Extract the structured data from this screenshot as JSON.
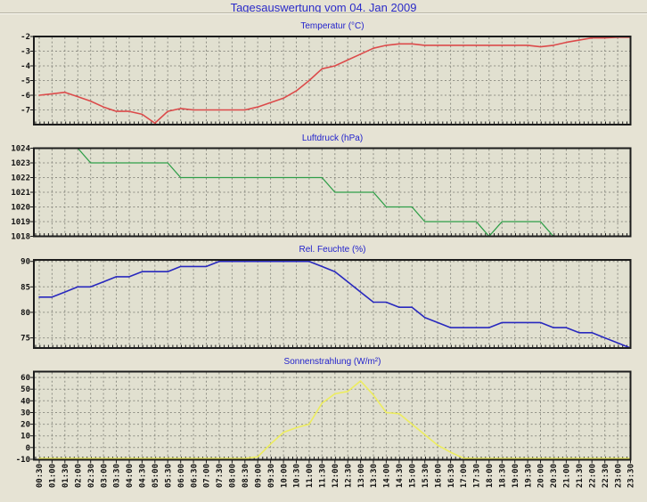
{
  "page": {
    "title": "Tagesauswertung vom 04. Jan 2009",
    "background_color": "#E6E3D4",
    "title_color": "#2B2BC8",
    "chart_title_color": "#2222CC"
  },
  "chart_data": [
    {
      "type": "line",
      "title": "Temperatur (°C)",
      "color": "#DC4A4A",
      "ylim": [
        -8,
        -2
      ],
      "yticks": [
        "-2",
        "-3",
        "-4",
        "-5",
        "-6",
        "-7"
      ],
      "ytick_values": [
        -2,
        -3,
        -4,
        -5,
        -6,
        -7
      ],
      "values": [
        -6.0,
        -5.9,
        -5.8,
        -6.1,
        -6.4,
        -6.8,
        -7.1,
        -7.1,
        -7.3,
        -7.9,
        -7.1,
        -6.9,
        -7.0,
        -7.0,
        -7.0,
        -7.0,
        -7.0,
        -6.8,
        -6.5,
        -6.2,
        -5.7,
        -5.0,
        -4.2,
        -4.0,
        -3.6,
        -3.2,
        -2.8,
        -2.6,
        -2.5,
        -2.5,
        -2.6,
        -2.6,
        -2.6,
        -2.6,
        -2.6,
        -2.6,
        -2.6,
        -2.6,
        -2.6,
        -2.7,
        -2.6,
        -2.4,
        -2.25,
        -2.1,
        -2.1,
        -2.05,
        -2.05
      ]
    },
    {
      "type": "line",
      "title": "Luftdruck (hPa)",
      "color": "#2F9E48",
      "ylim": [
        1018,
        1024
      ],
      "yticks": [
        "1024",
        "1023",
        "1022",
        "1021",
        "1020",
        "1019",
        "1018"
      ],
      "ytick_values": [
        1024,
        1023,
        1022,
        1021,
        1020,
        1019,
        1018
      ],
      "values": [
        1024,
        1024,
        1024,
        1024,
        1023,
        1023,
        1023,
        1023,
        1023,
        1023,
        1023,
        1022,
        1022,
        1022,
        1022,
        1022,
        1022,
        1022,
        1022,
        1022,
        1022,
        1022,
        1022,
        1021,
        1021,
        1021,
        1021,
        1020,
        1020,
        1020,
        1019,
        1019,
        1019,
        1019,
        1019,
        1018,
        1019,
        1019,
        1019,
        1019,
        1018,
        1018,
        1018,
        1018,
        1018,
        1018,
        1018
      ]
    },
    {
      "type": "line",
      "title": "Rel. Feuchte (%)",
      "color": "#2828BE",
      "ylim": [
        73,
        90.3
      ],
      "yticks": [
        "90",
        "85",
        "80",
        "75"
      ],
      "ytick_values": [
        90,
        85,
        80,
        75
      ],
      "values": [
        83,
        83,
        84,
        85,
        85,
        86,
        87,
        87,
        88,
        88,
        88,
        89,
        89,
        89,
        90,
        90,
        90,
        90,
        90,
        90,
        90,
        90,
        89,
        88,
        86,
        84,
        82,
        82,
        81,
        81,
        79,
        78,
        77,
        77,
        77,
        77,
        78,
        78,
        78,
        78,
        77,
        77,
        76,
        76,
        75,
        74,
        73
      ]
    },
    {
      "type": "line",
      "title": "Sonnenstrahlung (W/m²)",
      "color": "#EDED5E",
      "ylim": [
        -10.4,
        65
      ],
      "yticks": [
        "60",
        "50",
        "40",
        "30",
        "20",
        "10",
        "0",
        "-10"
      ],
      "ytick_values": [
        60,
        50,
        40,
        30,
        20,
        10,
        0,
        -10
      ],
      "values": [
        -9.3,
        -9.3,
        -9.3,
        -9.3,
        -9.3,
        -9.3,
        -9.3,
        -9.3,
        -9.3,
        -9.3,
        -9.3,
        -9.3,
        -9.3,
        -9.3,
        -9.3,
        -9.3,
        -9.3,
        -8,
        3,
        13,
        17,
        20,
        38,
        46,
        48,
        57,
        45,
        30,
        29,
        20,
        11,
        2,
        -4,
        -9,
        -9.3,
        -9.3,
        -9.3,
        -9.3,
        -9.3,
        -9.3,
        -9.3,
        -9.3,
        -9.3,
        -9.3,
        -9.3,
        -9.3,
        -9.3
      ],
      "categories": [
        "00:30",
        "01:00",
        "01:30",
        "02:00",
        "02:30",
        "03:00",
        "03:30",
        "04:00",
        "04:30",
        "05:00",
        "05:30",
        "06:00",
        "06:30",
        "07:00",
        "07:30",
        "08:00",
        "08:30",
        "09:00",
        "09:30",
        "10:00",
        "10:30",
        "11:00",
        "11:30",
        "12:00",
        "12:30",
        "13:00",
        "13:30",
        "14:00",
        "14:30",
        "15:00",
        "15:30",
        "16:00",
        "16:30",
        "17:00",
        "17:30",
        "18:00",
        "18:30",
        "19:00",
        "19:30",
        "20:00",
        "20:30",
        "21:00",
        "21:30",
        "22:00",
        "22:30",
        "23:00",
        "23:30"
      ]
    }
  ]
}
